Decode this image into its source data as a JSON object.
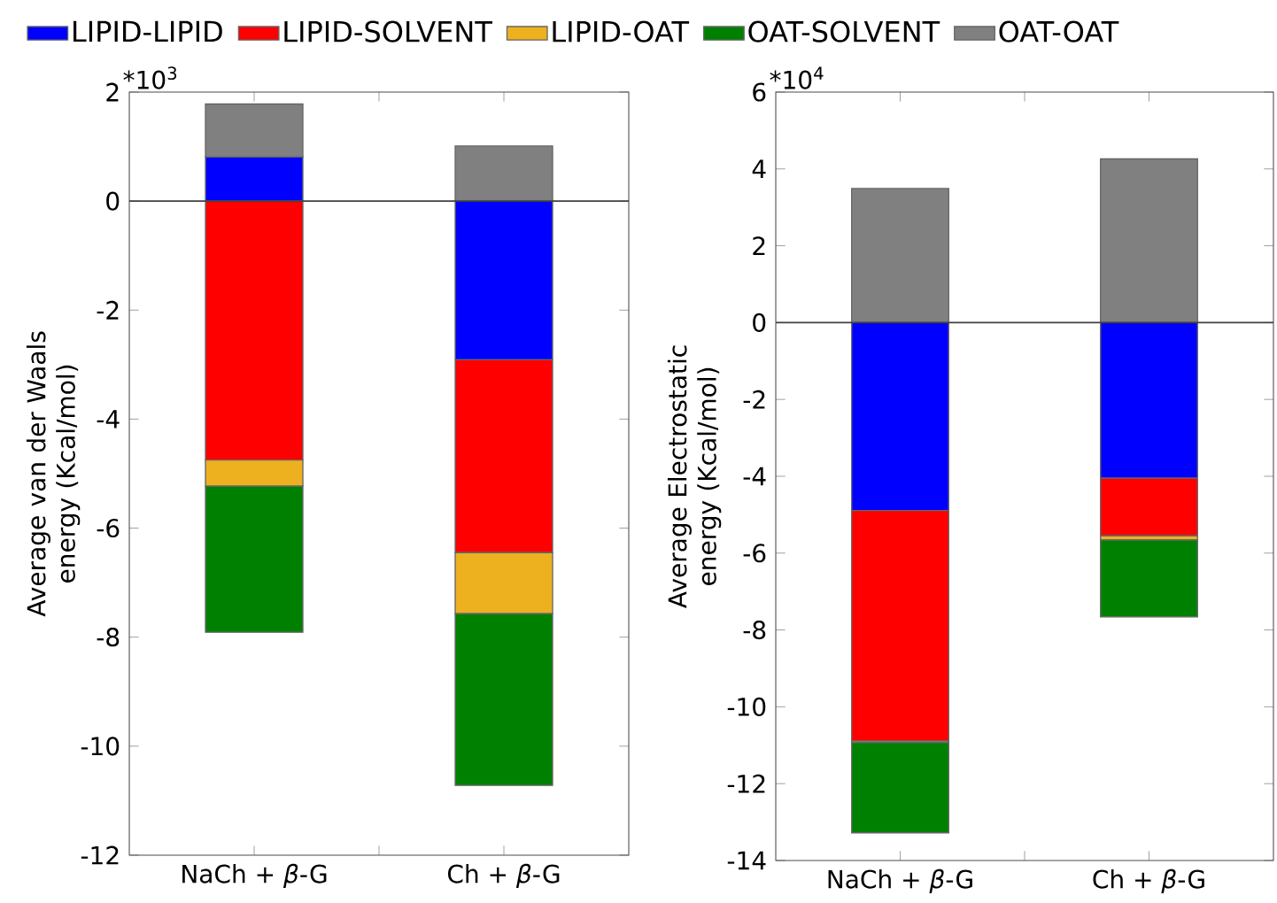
{
  "chart_data": [
    {
      "type": "bar",
      "stacked": true,
      "legend": "top",
      "categories": [
        "NaCh + *β*-G",
        "Ch + *β*-G"
      ],
      "ylabel": "Average van der Waals energy (Kcal/mol)",
      "ylim": [
        -12,
        2
      ],
      "yticks": [
        -12,
        -10,
        -8,
        -6,
        -4,
        -2,
        0,
        2
      ],
      "annotations": [
        "*10$^{3}$"
      ],
      "ref_lines": [
        {
          "axis": "y",
          "value": 0,
          "color": "#404040"
        }
      ],
      "series": [
        {
          "name": "LIPID-LIPID",
          "color": "#0000ff",
          "values": [
            0.81,
            -2.91
          ]
        },
        {
          "name": "LIPID-SOLVENT",
          "color": "#ff0000",
          "values": [
            -4.75,
            -3.54
          ]
        },
        {
          "name": "LIPID-OAT",
          "color": "#edb120",
          "values": [
            -0.48,
            -1.12
          ]
        },
        {
          "name": "OAT-SOLVENT",
          "color": "#008000",
          "values": [
            -2.68,
            -3.15
          ]
        },
        {
          "name": "OAT-OAT",
          "color": "#808080",
          "values": [
            0.97,
            1.01
          ]
        }
      ]
    },
    {
      "type": "bar",
      "stacked": true,
      "categories": [
        "NaCh + *β*-G",
        "Ch + *β*-G"
      ],
      "ylabel": "Average Electrostatic energy (Kcal/mol)",
      "ylim": [
        -14,
        6
      ],
      "yticks": [
        -14,
        -12,
        -10,
        -8,
        -6,
        -4,
        -2,
        0,
        2,
        4,
        6
      ],
      "annotations": [
        "*10$^{4}$"
      ],
      "ref_lines": [
        {
          "axis": "y",
          "value": 0,
          "color": "#404040"
        }
      ],
      "series": [
        {
          "color": "#0000ff",
          "values": [
            -4.89,
            -4.05
          ]
        },
        {
          "color": "#ff0000",
          "values": [
            -6.0,
            -1.5
          ]
        },
        {
          "color": "#edb120",
          "values": [
            -0.04,
            -0.11
          ]
        },
        {
          "color": "#008000",
          "values": [
            -2.35,
            -2.0
          ]
        },
        {
          "color": "#808080",
          "values": [
            3.49,
            4.26
          ]
        }
      ]
    }
  ]
}
